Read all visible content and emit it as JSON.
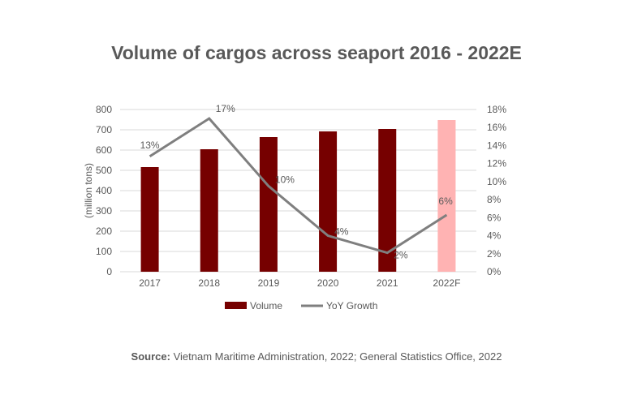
{
  "chart_data": {
    "type": "bar+line",
    "title": "Volume of cargos across seaport 2016 - 2022E",
    "categories": [
      "2017",
      "2018",
      "2019",
      "2020",
      "2021",
      "2022F"
    ],
    "ylabel": "(million tons)",
    "ylim": [
      0,
      800
    ],
    "yticks": [
      "0",
      "100",
      "200",
      "300",
      "400",
      "500",
      "600",
      "700",
      "800"
    ],
    "y2lim": [
      0,
      18
    ],
    "y2ticks": [
      "0%",
      "2%",
      "4%",
      "6%",
      "8%",
      "10%",
      "12%",
      "14%",
      "16%",
      "18%"
    ],
    "grid": true,
    "legend": "bottom",
    "series": [
      {
        "name": "Volume",
        "type": "bar",
        "values": [
          516,
          604,
          664,
          692,
          704,
          748
        ],
        "color": "#760000",
        "forecast_color": "#FFB3B3"
      },
      {
        "name": "YoY Growth",
        "type": "line",
        "axis": "right",
        "values": [
          12.8,
          17.0,
          9.5,
          4.0,
          2.1,
          6.3
        ],
        "labels": [
          "13%",
          "17%",
          "10%",
          "4%",
          "2%",
          "6%"
        ],
        "color": "#7F7F7F"
      }
    ]
  },
  "source": {
    "label": "Source:",
    "text": " Vietnam Maritime Administration, 2022; General Statistics Office, 2022"
  }
}
